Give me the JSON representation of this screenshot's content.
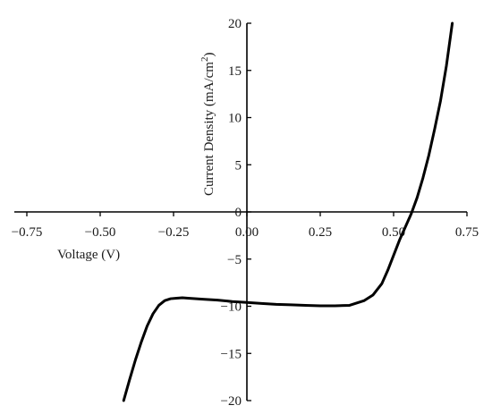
{
  "chart_data": {
    "type": "line",
    "xlabel": "Voltage (V)",
    "ylabel_main": "Current Density (mA/cm",
    "ylabel_sup": "2",
    "ylabel_end": ")",
    "xlim": [
      -0.75,
      0.75
    ],
    "ylim": [
      -20,
      20
    ],
    "x_ticks": [
      -0.75,
      -0.5,
      -0.25,
      0.0,
      0.25,
      0.5,
      0.75
    ],
    "x_tick_labels": [
      "−0.75",
      "−0.50",
      "−0.25",
      "0.00",
      "0.25",
      "0.50",
      "0.75"
    ],
    "y_ticks": [
      -20,
      -15,
      -10,
      -5,
      0,
      5,
      10,
      15,
      20
    ],
    "y_tick_labels": [
      "−20",
      "−15",
      "−10",
      "−5",
      "0",
      "5",
      "10",
      "15",
      "20"
    ],
    "grid": false,
    "series": [
      {
        "x": [
          -0.42,
          -0.4,
          -0.38,
          -0.36,
          -0.34,
          -0.32,
          -0.3,
          -0.28,
          -0.26,
          -0.24,
          -0.22,
          -0.2,
          -0.15,
          -0.1,
          -0.05,
          0.0,
          0.05,
          0.1,
          0.15,
          0.2,
          0.25,
          0.3,
          0.35,
          0.4,
          0.43,
          0.46,
          0.48,
          0.5,
          0.52,
          0.54,
          0.56,
          0.58,
          0.6,
          0.62,
          0.64,
          0.66,
          0.68,
          0.7
        ],
        "y": [
          -20.0,
          -17.8,
          -15.7,
          -13.8,
          -12.1,
          -10.8,
          -9.9,
          -9.4,
          -9.2,
          -9.15,
          -9.1,
          -9.15,
          -9.25,
          -9.35,
          -9.5,
          -9.6,
          -9.7,
          -9.8,
          -9.85,
          -9.9,
          -9.95,
          -9.95,
          -9.9,
          -9.4,
          -8.8,
          -7.6,
          -6.2,
          -4.6,
          -3.0,
          -1.6,
          -0.2,
          1.5,
          3.6,
          6.0,
          8.8,
          11.8,
          15.5,
          20.0
        ]
      }
    ]
  }
}
